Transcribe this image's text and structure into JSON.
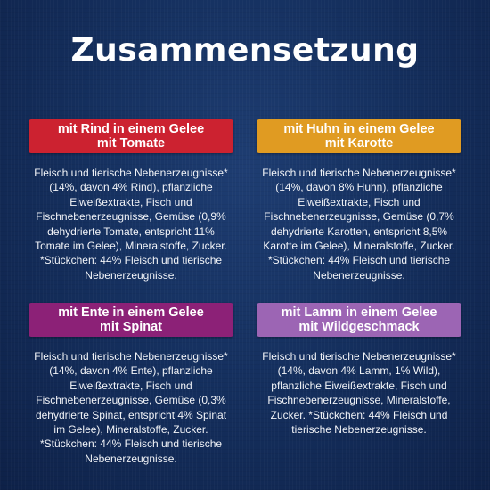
{
  "title": "Zusammensetzung",
  "cards": [
    {
      "id": "rind",
      "label_line1": "mit Rind in einem Gelee",
      "label_line2": "mit Tomate",
      "color": "#cc2230",
      "text": "Fleisch und tierische Nebenerzeugnisse* (14%, davon 4% Rind), pflanzliche Eiweißextrakte, Fisch und Fischnebenerzeugnisse, Gemüse (0,9% dehydrierte Tomate, entspricht 11% Tomate im Gelee), Mineralstoffe, Zucker. *Stückchen: 44% Fleisch und tierische Nebenerzeugnisse."
    },
    {
      "id": "huhn",
      "label_line1": "mit Huhn in einem Gelee",
      "label_line2": "mit Karotte",
      "color": "#e09b22",
      "text": "Fleisch und tierische Nebenerzeugnisse* (14%, davon 8% Huhn), pflanzliche Eiweißextrakte, Fisch und Fischnebenerzeugnisse, Gemüse (0,7% dehydrierte Karotten, entspricht 8,5% Karotte im Gelee), Mineralstoffe, Zucker. *Stückchen: 44% Fleisch und tierische Nebenerzeugnisse."
    },
    {
      "id": "ente",
      "label_line1": "mit Ente in einem Gelee",
      "label_line2": "mit Spinat",
      "color": "#8c2177",
      "text": "Fleisch und tierische Nebenerzeugnisse* (14%, davon 4% Ente), pflanzliche Eiweißextrakte, Fisch und Fischnebenerzeugnisse, Gemüse (0,3% dehydrierte Spinat, entspricht 4% Spinat im Gelee), Mineralstoffe, Zucker. *Stückchen: 44% Fleisch und tierische Nebenerzeugnisse."
    },
    {
      "id": "lamm",
      "label_line1": "mit Lamm in einem Gelee",
      "label_line2": "mit Wildgeschmack",
      "color": "#9c65b4",
      "text": "Fleisch und tierische Nebenerzeugnisse* (14%, davon 4% Lamm, 1% Wild), pflanzliche Eiweißextrakte, Fisch und Fischnebenerzeugnisse, Mineralstoffe, Zucker. *Stückchen: 44% Fleisch und tierische Nebenerzeugnisse."
    }
  ]
}
